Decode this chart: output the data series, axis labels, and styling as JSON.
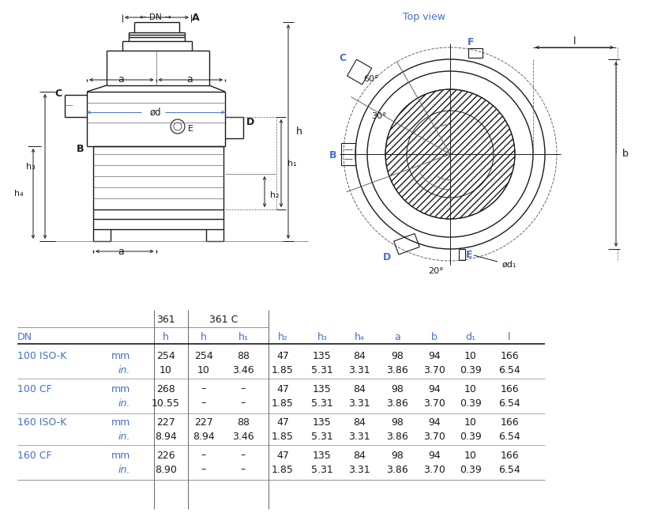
{
  "blue": "#4472C4",
  "black": "#1a1a1a",
  "gray": "#666666",
  "lgray": "#999999",
  "bg": "#ffffff",
  "top_view_label": "Top view",
  "table_rows": [
    [
      "100 ISO-K",
      "mm",
      "254",
      "254",
      "88",
      "47",
      "135",
      "84",
      "98",
      "94",
      "10",
      "166"
    ],
    [
      "",
      "in.",
      "10",
      "10",
      "3.46",
      "1.85",
      "5.31",
      "3.31",
      "3.86",
      "3.70",
      "0.39",
      "6.54"
    ],
    [
      "100 CF",
      "mm",
      "268",
      "–",
      "–",
      "47",
      "135",
      "84",
      "98",
      "94",
      "10",
      "166"
    ],
    [
      "",
      "in.",
      "10.55",
      "–",
      "–",
      "1.85",
      "5.31",
      "3.31",
      "3.86",
      "3.70",
      "0.39",
      "6.54"
    ],
    [
      "160 ISO-K",
      "mm",
      "227",
      "227",
      "88",
      "47",
      "135",
      "84",
      "98",
      "94",
      "10",
      "166"
    ],
    [
      "",
      "in.",
      "8.94",
      "8.94",
      "3.46",
      "1.85",
      "5.31",
      "3.31",
      "3.86",
      "3.70",
      "0.39",
      "6.54"
    ],
    [
      "160 CF",
      "mm",
      "226",
      "–",
      "–",
      "47",
      "135",
      "84",
      "98",
      "94",
      "10",
      "166"
    ],
    [
      "",
      "in.",
      "8.90",
      "–",
      "–",
      "1.85",
      "5.31",
      "3.31",
      "3.86",
      "3.70",
      "0.39",
      "6.54"
    ]
  ],
  "col_headers": [
    "DN",
    "",
    "h",
    "h",
    "h₁",
    "h₂",
    "h₃",
    "h₄",
    "a",
    "b",
    "d₁",
    "l"
  ],
  "grp_header1_361": "361",
  "grp_header1_361c": "361 C"
}
